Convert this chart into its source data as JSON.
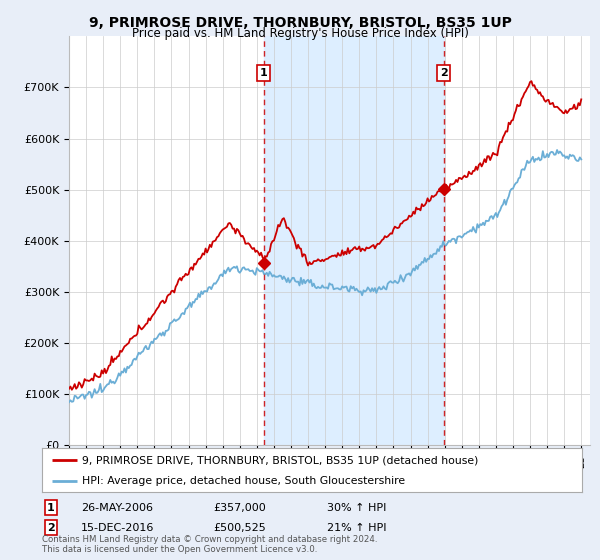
{
  "title": "9, PRIMROSE DRIVE, THORNBURY, BRISTOL, BS35 1UP",
  "subtitle": "Price paid vs. HM Land Registry's House Price Index (HPI)",
  "ylim": [
    0,
    800000
  ],
  "yticks": [
    0,
    100000,
    200000,
    300000,
    400000,
    500000,
    600000,
    700000
  ],
  "ytick_labels": [
    "£0",
    "£100K",
    "£200K",
    "£300K",
    "£400K",
    "£500K",
    "£600K",
    "£700K"
  ],
  "hpi_color": "#6baed6",
  "price_color": "#cc0000",
  "shade_color": "#ddeeff",
  "marker1_year": 2006.4,
  "marker1_price": 357000,
  "marker2_year": 2016.95,
  "marker2_price": 500525,
  "legend_line1": "9, PRIMROSE DRIVE, THORNBURY, BRISTOL, BS35 1UP (detached house)",
  "legend_line2": "HPI: Average price, detached house, South Gloucestershire",
  "marker1_date": "26-MAY-2006",
  "marker1_amount": "£357,000",
  "marker1_hpi": "30% ↑ HPI",
  "marker2_date": "15-DEC-2016",
  "marker2_amount": "£500,525",
  "marker2_hpi": "21% ↑ HPI",
  "footer": "Contains HM Land Registry data © Crown copyright and database right 2024.\nThis data is licensed under the Open Government Licence v3.0.",
  "bg_color": "#e8eef8",
  "plot_bg": "#ffffff"
}
